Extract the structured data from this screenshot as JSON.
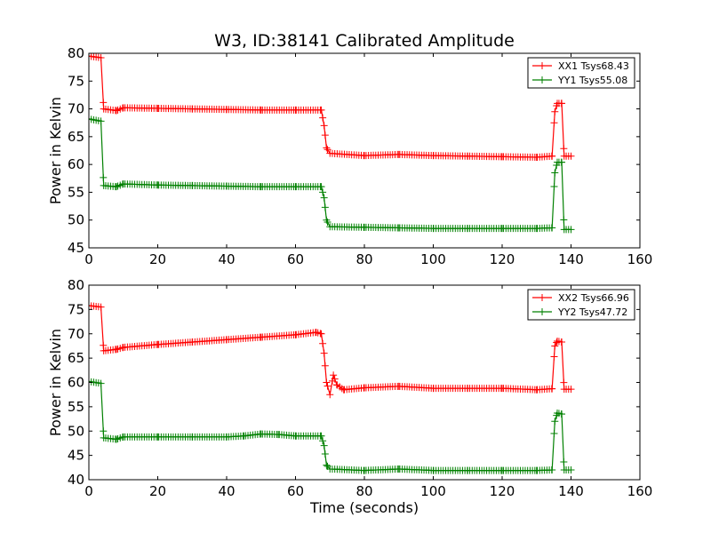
{
  "chart_data": [
    {
      "type": "line",
      "title": "W3, ID:38141 Calibrated Amplitude",
      "xlabel": "",
      "ylabel": "Power in Kelvin",
      "xlim": [
        0,
        160
      ],
      "ylim": [
        45,
        80
      ],
      "xticks": [
        0,
        20,
        40,
        60,
        80,
        100,
        120,
        140,
        160
      ],
      "yticks": [
        45,
        50,
        55,
        60,
        65,
        70,
        75,
        80
      ],
      "xtick_labels": [
        "0",
        "20",
        "40",
        "60",
        "80",
        "100",
        "120",
        "140",
        "160"
      ],
      "ytick_labels": [
        "45",
        "50",
        "55",
        "60",
        "65",
        "70",
        "75",
        "80"
      ],
      "grid": false,
      "legend_position": "top-right",
      "marker": "+",
      "series": [
        {
          "name": "XX1 Tsys68.43",
          "color": "#ff0000",
          "points": [
            [
              0,
              79.5
            ],
            [
              3.5,
              79.2
            ],
            [
              4.3,
              70.0
            ],
            [
              8,
              69.7
            ],
            [
              10,
              70.2
            ],
            [
              20,
              70.1
            ],
            [
              30,
              70.0
            ],
            [
              40,
              69.9
            ],
            [
              50,
              69.8
            ],
            [
              60,
              69.8
            ],
            [
              67.5,
              69.8
            ],
            [
              68.3,
              67.0
            ],
            [
              69.0,
              63.0
            ],
            [
              70.0,
              62.0
            ],
            [
              80,
              61.6
            ],
            [
              90,
              61.8
            ],
            [
              100,
              61.6
            ],
            [
              110,
              61.5
            ],
            [
              120,
              61.4
            ],
            [
              130,
              61.3
            ],
            [
              134.5,
              61.5
            ],
            [
              135.3,
              69.5
            ],
            [
              136.0,
              71.0
            ],
            [
              137.3,
              71.0
            ],
            [
              138.0,
              61.5
            ],
            [
              140,
              61.5
            ]
          ]
        },
        {
          "name": "YY1 Tsys55.08",
          "color": "#008000",
          "points": [
            [
              0,
              68.2
            ],
            [
              3.5,
              67.8
            ],
            [
              4.3,
              56.2
            ],
            [
              8,
              56.0
            ],
            [
              10,
              56.5
            ],
            [
              20,
              56.3
            ],
            [
              30,
              56.2
            ],
            [
              40,
              56.1
            ],
            [
              50,
              56.0
            ],
            [
              60,
              56.0
            ],
            [
              67.5,
              56.0
            ],
            [
              68.3,
              54.0
            ],
            [
              69.0,
              50.0
            ],
            [
              70.0,
              48.8
            ],
            [
              80,
              48.7
            ],
            [
              90,
              48.6
            ],
            [
              100,
              48.5
            ],
            [
              110,
              48.5
            ],
            [
              120,
              48.5
            ],
            [
              130,
              48.5
            ],
            [
              134.5,
              48.6
            ],
            [
              135.3,
              58.5
            ],
            [
              136.0,
              60.4
            ],
            [
              137.3,
              60.4
            ],
            [
              138.0,
              48.3
            ],
            [
              140,
              48.3
            ]
          ]
        }
      ]
    },
    {
      "type": "line",
      "title": "",
      "xlabel": "Time (seconds)",
      "ylabel": "Power in Kelvin",
      "xlim": [
        0,
        160
      ],
      "ylim": [
        40,
        80
      ],
      "xticks": [
        0,
        20,
        40,
        60,
        80,
        100,
        120,
        140,
        160
      ],
      "yticks": [
        40,
        45,
        50,
        55,
        60,
        65,
        70,
        75,
        80
      ],
      "xtick_labels": [
        "0",
        "20",
        "40",
        "60",
        "80",
        "100",
        "120",
        "140",
        "160"
      ],
      "ytick_labels": [
        "40",
        "45",
        "50",
        "55",
        "60",
        "65",
        "70",
        "75",
        "80"
      ],
      "grid": false,
      "legend_position": "top-right",
      "marker": "+",
      "series": [
        {
          "name": "XX2 Tsys66.96",
          "color": "#ff0000",
          "points": [
            [
              0,
              75.8
            ],
            [
              3.5,
              75.5
            ],
            [
              4.3,
              66.5
            ],
            [
              8,
              66.8
            ],
            [
              10,
              67.2
            ],
            [
              20,
              67.8
            ],
            [
              30,
              68.3
            ],
            [
              40,
              68.8
            ],
            [
              50,
              69.3
            ],
            [
              60,
              69.8
            ],
            [
              66,
              70.3
            ],
            [
              67.5,
              70.0
            ],
            [
              68.3,
              66.0
            ],
            [
              69.0,
              60.0
            ],
            [
              70.0,
              57.5
            ],
            [
              71.0,
              61.5
            ],
            [
              72.0,
              59.5
            ],
            [
              74.0,
              58.5
            ],
            [
              80,
              58.9
            ],
            [
              90,
              59.2
            ],
            [
              100,
              58.8
            ],
            [
              110,
              58.8
            ],
            [
              120,
              58.8
            ],
            [
              130,
              58.5
            ],
            [
              134.5,
              58.7
            ],
            [
              135.3,
              67.5
            ],
            [
              136.0,
              68.5
            ],
            [
              137.3,
              68.3
            ],
            [
              138.0,
              58.6
            ],
            [
              140,
              58.6
            ]
          ]
        },
        {
          "name": "YY2 Tsys47.72",
          "color": "#008000",
          "points": [
            [
              0,
              60.2
            ],
            [
              3.5,
              59.8
            ],
            [
              4.3,
              48.6
            ],
            [
              8,
              48.3
            ],
            [
              10,
              48.8
            ],
            [
              20,
              48.8
            ],
            [
              30,
              48.8
            ],
            [
              40,
              48.8
            ],
            [
              45,
              49.0
            ],
            [
              50,
              49.4
            ],
            [
              55,
              49.3
            ],
            [
              60,
              49.0
            ],
            [
              67.5,
              49.0
            ],
            [
              68.3,
              47.0
            ],
            [
              69.0,
              43.0
            ],
            [
              70.0,
              42.2
            ],
            [
              80,
              41.9
            ],
            [
              90,
              42.2
            ],
            [
              100,
              41.9
            ],
            [
              110,
              41.9
            ],
            [
              120,
              41.9
            ],
            [
              130,
              41.9
            ],
            [
              134.5,
              42.0
            ],
            [
              135.3,
              52.0
            ],
            [
              136.0,
              53.7
            ],
            [
              137.3,
              53.5
            ],
            [
              138.0,
              42.0
            ],
            [
              140,
              42.0
            ]
          ]
        }
      ]
    }
  ]
}
